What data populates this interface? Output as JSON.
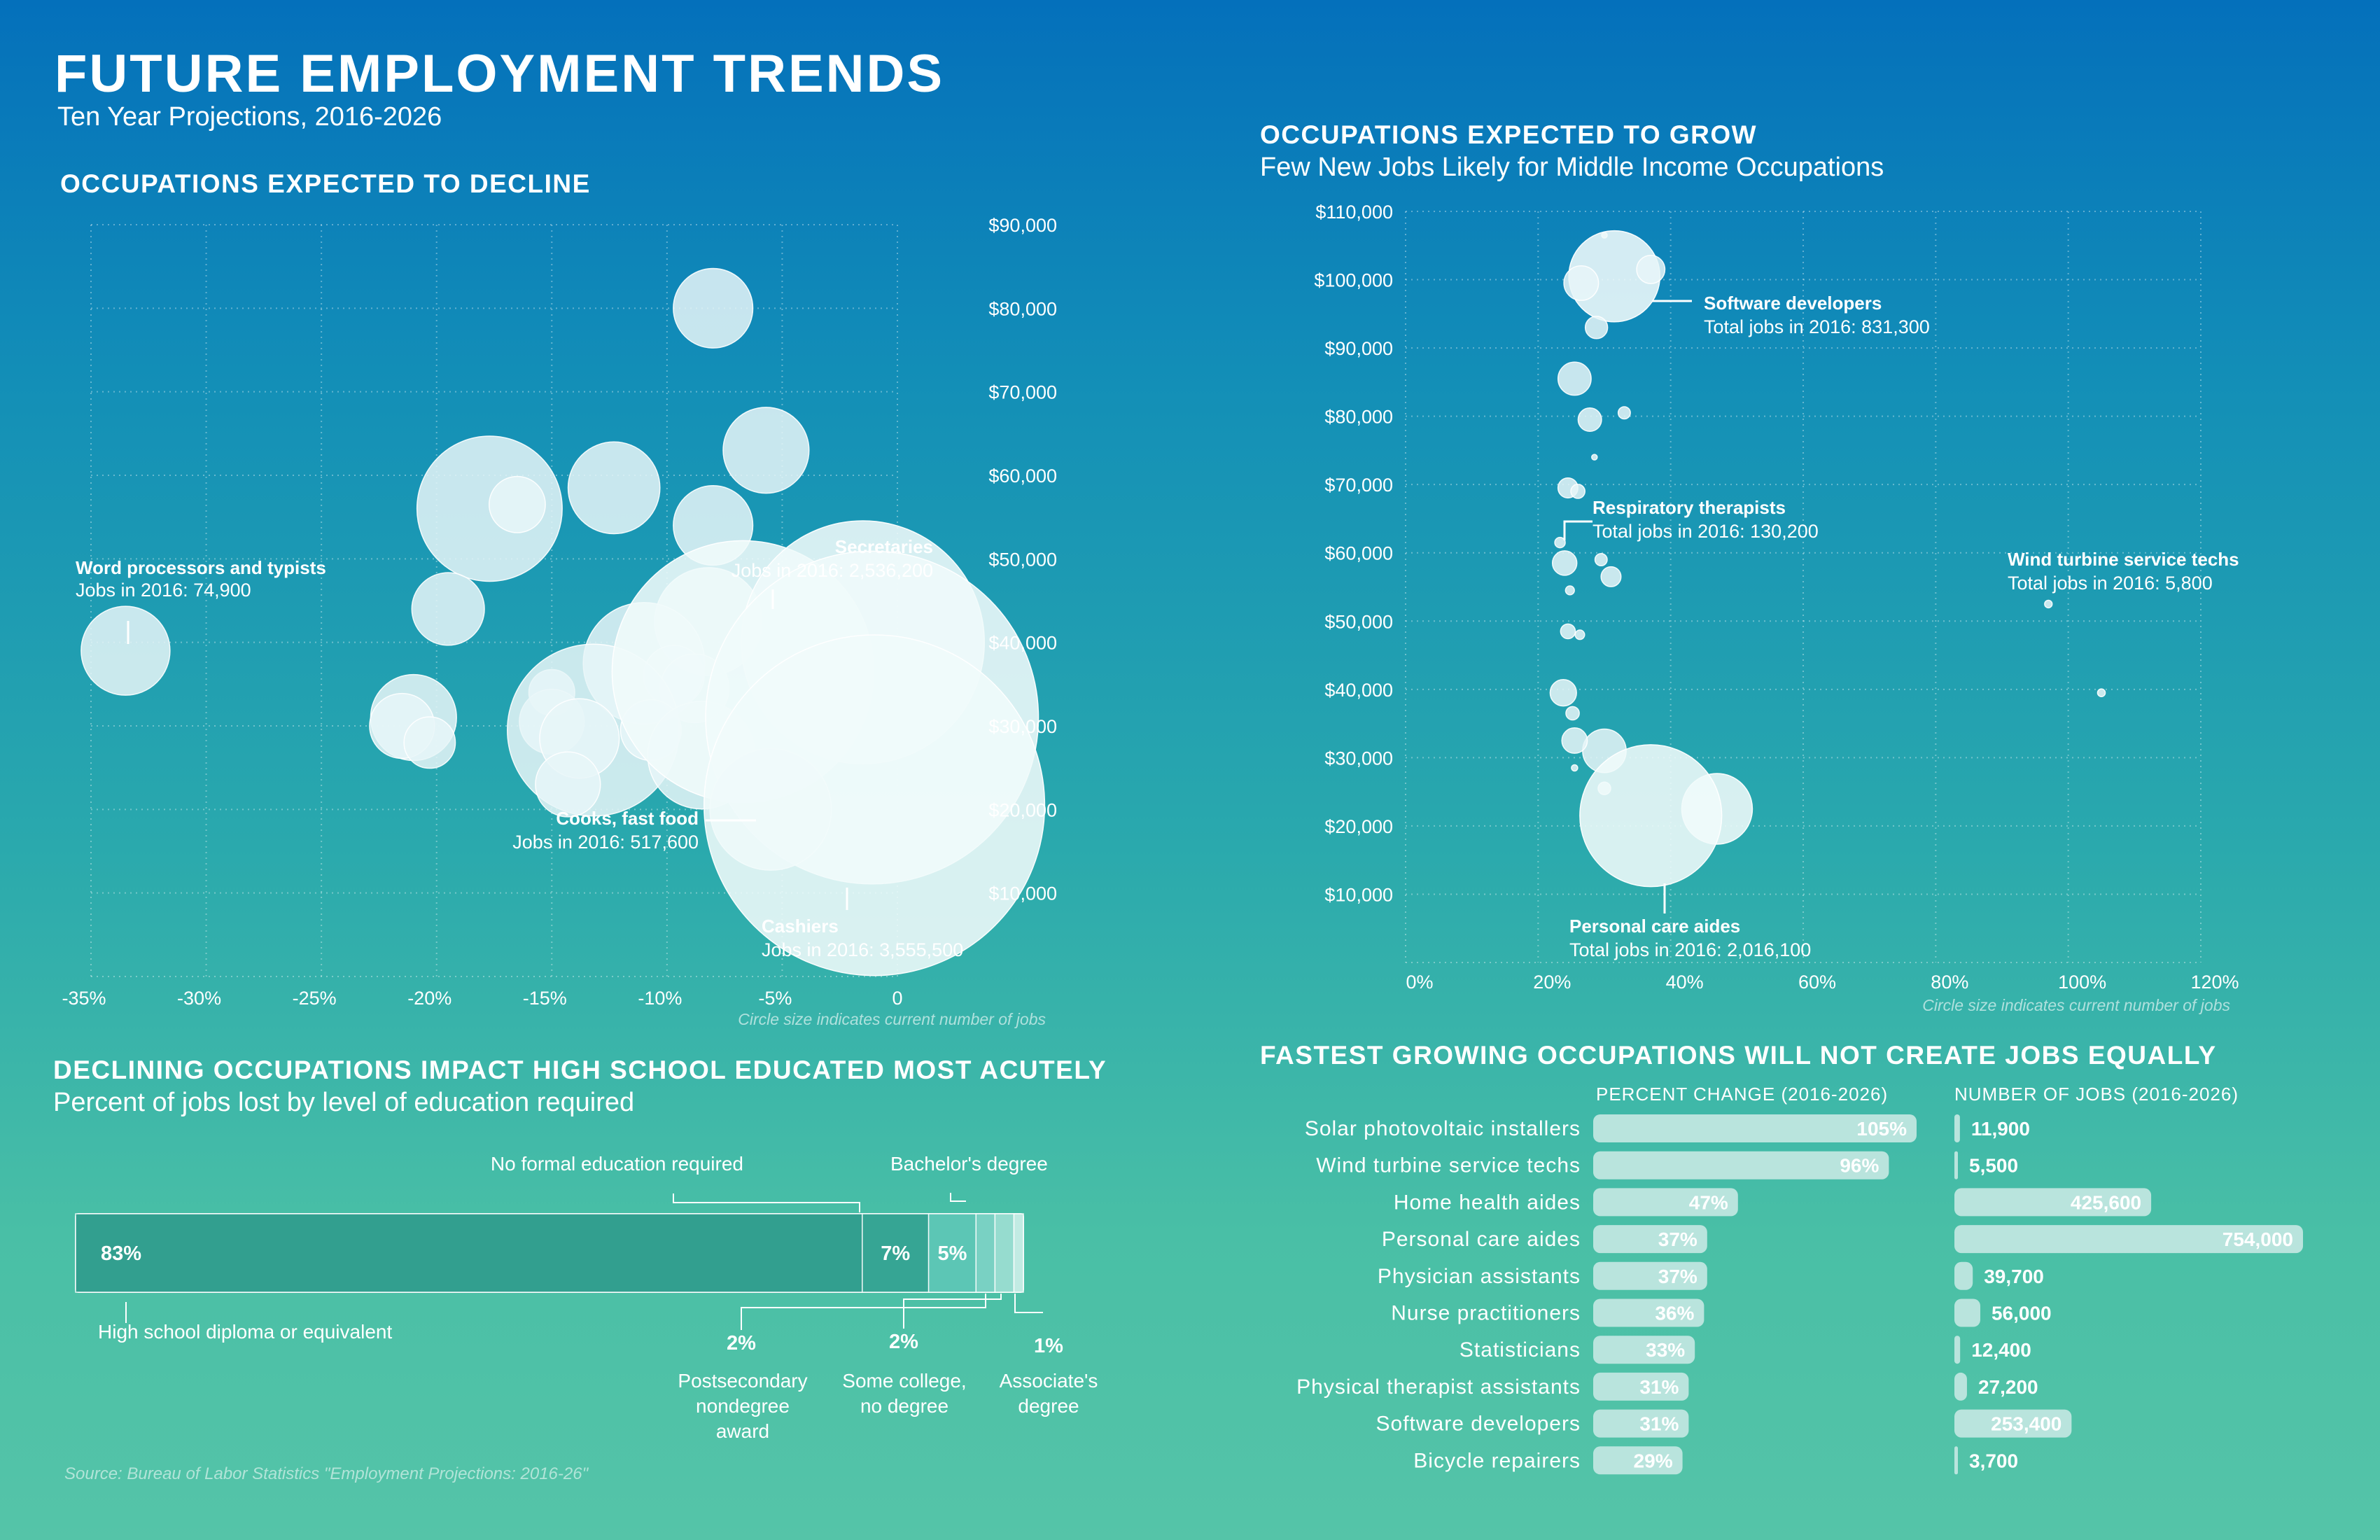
{
  "header": {
    "title": "FUTURE EMPLOYMENT TRENDS",
    "subtitle": "Ten Year Projections, 2016-2026"
  },
  "decline_section": {
    "title": "OCCUPATIONS EXPECTED TO DECLINE",
    "note": "Circle size indicates current number of jobs"
  },
  "grow_section": {
    "title": "OCCUPATIONS EXPECTED TO GROW",
    "subtitle": "Few New Jobs Likely for Middle Income Occupations",
    "note": "Circle size indicates current number of jobs"
  },
  "education_section": {
    "title": "DECLINING OCCUPATIONS IMPACT HIGH SCHOOL EDUCATED MOST ACUTELY",
    "subtitle": "Percent of jobs lost by level of education required"
  },
  "fastest_section": {
    "title": "FASTEST GROWING OCCUPATIONS WILL NOT CREATE JOBS EQUALLY",
    "col_pct": "PERCENT CHANGE (2016-2026)",
    "col_jobs": "NUMBER OF JOBS (2016-2026)"
  },
  "source": "Source: Bureau of Labor Statistics \"Employment Projections: 2016-26\"",
  "colors": {
    "bubble": "#e8f6f8",
    "bar": "#b9e4dd",
    "edu_dark": "#329f8f",
    "edu_light": "#5cc6b5"
  },
  "chart_data": [
    {
      "type": "scatter",
      "title": "OCCUPATIONS EXPECTED TO DECLINE",
      "x_ticks": [
        "-35%",
        "-30%",
        "-25%",
        "-20%",
        "-15%",
        "-10%",
        "-5%",
        "0"
      ],
      "y_ticks": [
        "$10,000",
        "$20,000",
        "$30,000",
        "$40,000",
        "$50,000",
        "$60,000",
        "$70,000",
        "$80,000",
        "$90,000"
      ],
      "xlim": [
        -35,
        0
      ],
      "ylim": [
        0,
        90000
      ],
      "size_legend": "Circle size indicates current number of jobs",
      "points": [
        {
          "x": -33.5,
          "y": 39000,
          "jobs": 74900
        },
        {
          "x": -8,
          "y": 80000,
          "jobs": 60000
        },
        {
          "x": -5.7,
          "y": 63000,
          "jobs": 70000
        },
        {
          "x": -17.7,
          "y": 56000,
          "jobs": 200000
        },
        {
          "x": -16.5,
          "y": 56500,
          "jobs": 30000
        },
        {
          "x": -12.3,
          "y": 58500,
          "jobs": 80000
        },
        {
          "x": -8,
          "y": 54000,
          "jobs": 60000
        },
        {
          "x": -19.5,
          "y": 44000,
          "jobs": 50000
        },
        {
          "x": -8.2,
          "y": 42500,
          "jobs": 110000
        },
        {
          "x": -11,
          "y": 37500,
          "jobs": 140000
        },
        {
          "x": -9.7,
          "y": 36000,
          "jobs": 35000
        },
        {
          "x": -8.8,
          "y": 34500,
          "jobs": 45000
        },
        {
          "x": -15,
          "y": 34000,
          "jobs": 20000
        },
        {
          "x": -15,
          "y": 30500,
          "jobs": 40000
        },
        {
          "x": -21,
          "y": 31000,
          "jobs": 70000
        },
        {
          "x": -21.5,
          "y": 30000,
          "jobs": 40000
        },
        {
          "x": -20.3,
          "y": 28000,
          "jobs": 25000
        },
        {
          "x": -13.2,
          "y": 29500,
          "jobs": 280000
        },
        {
          "x": -13.8,
          "y": 28500,
          "jobs": 60000
        },
        {
          "x": -10.7,
          "y": 29500,
          "jobs": 35000
        },
        {
          "x": -8.5,
          "y": 26500,
          "jobs": 110000
        },
        {
          "x": -14.3,
          "y": 23000,
          "jobs": 40000
        },
        {
          "x": -6.7,
          "y": 36500,
          "jobs": 650000
        },
        {
          "x": -1.5,
          "y": 40000,
          "jobs": 560000
        },
        {
          "x": -1.1,
          "y": 31000,
          "jobs": 1050000
        },
        {
          "x": -5.5,
          "y": 20000,
          "jobs": 140000
        },
        {
          "x": -1,
          "y": 20500,
          "jobs": 1100000
        }
      ],
      "annotations": [
        {
          "name": "Word processors and typists",
          "value": "Jobs in 2016: 74,900"
        },
        {
          "name": "Secretaries",
          "value": "Jobs in 2016: 2,536,200"
        },
        {
          "name": "Cooks, fast food",
          "value": "Jobs in 2016: 517,600"
        },
        {
          "name": "Cashiers",
          "value": "Jobs in 2016: 3,555,500"
        }
      ]
    },
    {
      "type": "scatter",
      "title": "OCCUPATIONS EXPECTED TO GROW",
      "subtitle": "Few New Jobs Likely for Middle Income Occupations",
      "x_ticks": [
        "0%",
        "20%",
        "40%",
        "60%",
        "80%",
        "100%",
        "120%"
      ],
      "y_ticks": [
        "$10,000",
        "$20,000",
        "$30,000",
        "$40,000",
        "$50,000",
        "$60,000",
        "$70,000",
        "$80,000",
        "$90,000",
        "$100,000",
        "$110,000"
      ],
      "xlim": [
        0,
        120
      ],
      "ylim": [
        0,
        110000
      ],
      "size_legend": "Circle size indicates current number of jobs",
      "points": [
        {
          "x": 30,
          "y": 106500,
          "jobs": 3000
        },
        {
          "x": 31.5,
          "y": 100500,
          "jobs": 831300
        },
        {
          "x": 26.5,
          "y": 99500,
          "jobs": 120000
        },
        {
          "x": 37,
          "y": 101500,
          "jobs": 80000
        },
        {
          "x": 28.8,
          "y": 93000,
          "jobs": 50000
        },
        {
          "x": 25.5,
          "y": 85500,
          "jobs": 110000
        },
        {
          "x": 27.8,
          "y": 79500,
          "jobs": 55000
        },
        {
          "x": 33,
          "y": 80500,
          "jobs": 15000
        },
        {
          "x": 28.5,
          "y": 74000,
          "jobs": 2000
        },
        {
          "x": 24.5,
          "y": 69500,
          "jobs": 40000
        },
        {
          "x": 26,
          "y": 69000,
          "jobs": 20000
        },
        {
          "x": 23.3,
          "y": 61500,
          "jobs": 11000
        },
        {
          "x": 24,
          "y": 58500,
          "jobs": 60000
        },
        {
          "x": 29.5,
          "y": 59000,
          "jobs": 15000
        },
        {
          "x": 31,
          "y": 56500,
          "jobs": 40000
        },
        {
          "x": 24.8,
          "y": 54500,
          "jobs": 8000
        },
        {
          "x": 24.5,
          "y": 48500,
          "jobs": 22000
        },
        {
          "x": 26.3,
          "y": 48000,
          "jobs": 9000
        },
        {
          "x": 23.8,
          "y": 39500,
          "jobs": 70000
        },
        {
          "x": 25.2,
          "y": 36500,
          "jobs": 18000
        },
        {
          "x": 30,
          "y": 31000,
          "jobs": 190000
        },
        {
          "x": 25.5,
          "y": 32500,
          "jobs": 65000
        },
        {
          "x": 25.5,
          "y": 28500,
          "jobs": 4000
        },
        {
          "x": 30,
          "y": 25500,
          "jobs": 16000
        },
        {
          "x": 47,
          "y": 22500,
          "jobs": 500000
        },
        {
          "x": 37,
          "y": 21500,
          "jobs": 2016100
        },
        {
          "x": 97,
          "y": 52500,
          "jobs": 5800
        },
        {
          "x": 105,
          "y": 39500,
          "jobs": 6000
        }
      ],
      "annotations": [
        {
          "name": "Software developers",
          "value": "Total jobs in 2016: 831,300"
        },
        {
          "name": "Respiratory therapists",
          "value": "Total jobs in 2016: 130,200"
        },
        {
          "name": "Wind turbine service techs",
          "value": "Total jobs in 2016: 5,800"
        },
        {
          "name": "Personal care aides",
          "value": "Total jobs in 2016: 2,016,100"
        }
      ]
    },
    {
      "type": "bar",
      "orientation": "stacked-horizontal",
      "title": "DECLINING OCCUPATIONS IMPACT HIGH SCHOOL EDUCATED MOST ACUTELY",
      "subtitle": "Percent of jobs lost by level of education required",
      "segments": [
        {
          "name": "High school diploma or equivalent",
          "value": 83,
          "label": "83%"
        },
        {
          "name": "No formal education required",
          "value": 7,
          "label": "7%"
        },
        {
          "name": "Bachelor's degree",
          "value": 5,
          "label": "5%"
        },
        {
          "name": "Postsecondary nondegree award",
          "value": 2,
          "label": "2%"
        },
        {
          "name": "Some college, no degree",
          "value": 2,
          "label": "2%"
        },
        {
          "name": "Associate's degree",
          "value": 1,
          "label": "1%"
        }
      ],
      "callouts": {
        "no_formal": "No formal education required",
        "bachelors": "Bachelor's degree",
        "high_school": "High school diploma or equivalent",
        "postsecondary_l1": "Postsecondary",
        "postsecondary_l2": "nondegree",
        "postsecondary_l3": "award",
        "some_college_l1": "Some college,",
        "some_college_l2": "no degree",
        "associates_l1": "Associate's",
        "associates_l2": "degree"
      }
    },
    {
      "type": "bar",
      "orientation": "horizontal",
      "title": "FASTEST GROWING OCCUPATIONS WILL NOT CREATE JOBS EQUALLY",
      "categories": [
        "Solar photovoltaic installers",
        "Wind turbine service techs",
        "Home health aides",
        "Personal care aides",
        "Physician assistants",
        "Nurse practitioners",
        "Statisticians",
        "Physical therapist assistants",
        "Software developers",
        "Bicycle repairers"
      ],
      "series": [
        {
          "name": "PERCENT CHANGE (2016-2026)",
          "values": [
            105,
            96,
            47,
            37,
            37,
            36,
            33,
            31,
            31,
            29
          ],
          "labels": [
            "105%",
            "96%",
            "47%",
            "37%",
            "37%",
            "36%",
            "33%",
            "31%",
            "31%",
            "29%"
          ]
        },
        {
          "name": "NUMBER OF JOBS (2016-2026)",
          "values": [
            11900,
            5500,
            425600,
            754000,
            39700,
            56000,
            12400,
            27200,
            253400,
            3700
          ],
          "labels": [
            "11,900",
            "5,500",
            "425,600",
            "754,000",
            "39,700",
            "56,000",
            "12,400",
            "27,200",
            "253,400",
            "3,700"
          ]
        }
      ]
    }
  ]
}
